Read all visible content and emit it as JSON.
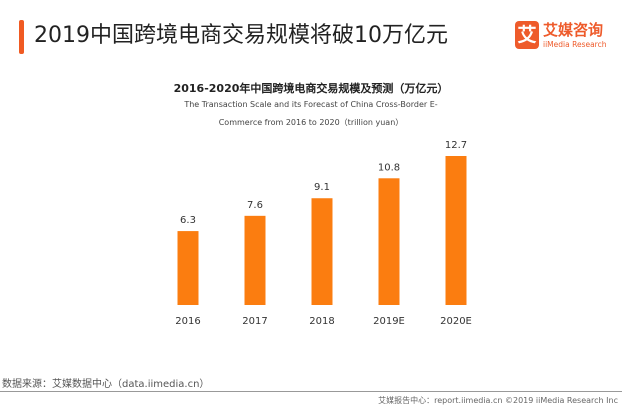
{
  "header": {
    "title": "2019中国跨境电商交易规模将破10万亿元"
  },
  "logo": {
    "mark": "艾",
    "name_cn": "艾媒咨询",
    "name_en": "iiMedia Research"
  },
  "chart_data": {
    "type": "bar",
    "title": "2016-2020年中国跨境电商交易规模及预测（万亿元）",
    "subtitle_line1": "The Transaction Scale and its Forecast of China Cross-Border E-",
    "subtitle_line2": "Commerce from 2016 to 2020（trillion yuan）",
    "categories": [
      "2016",
      "2017",
      "2018",
      "2019E",
      "2020E"
    ],
    "values": [
      6.3,
      7.6,
      9.1,
      10.8,
      12.7
    ],
    "ylim": [
      0,
      12.7
    ],
    "bar_color": "#fb7d10",
    "grid": false,
    "data_labels": true
  },
  "footer": {
    "source": "数据来源：艾媒数据中心（data.iimedia.cn）",
    "credit": "艾媒报告中心：report.iimedia.cn ©2019 iiMedia Research Inc"
  }
}
